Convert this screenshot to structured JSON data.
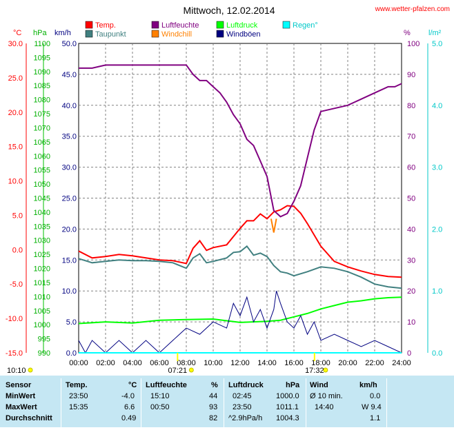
{
  "header": {
    "title": "Mittwoch, 12.02.2014",
    "site": "www.wetter-pfalzen.com"
  },
  "legend": [
    {
      "label": "Temp.",
      "color": "#ff0000"
    },
    {
      "label": "Luftfeuchte",
      "color": "#800080"
    },
    {
      "label": "Luftdruck",
      "color": "#00ff00"
    },
    {
      "label": "Regen°",
      "color": "#00ffff"
    },
    {
      "label": "Taupunkt",
      "color": "#408080"
    },
    {
      "label": "Windchill",
      "color": "#ff8000"
    },
    {
      "label": "Windböen",
      "color": "#000080"
    }
  ],
  "axes": {
    "unit_temp": "°C",
    "unit_hpa": "hPa",
    "unit_kmh": "km/h",
    "unit_pct": "%",
    "unit_rain": "l/m²",
    "temp_ticks": [
      "30.0",
      "25.0",
      "20.0",
      "15.0",
      "10.0",
      "5.0",
      "0.0",
      "-5.0",
      "-10.0",
      "-15.0"
    ],
    "hpa_ticks": [
      "1100",
      "1095",
      "1090",
      "1085",
      "1080",
      "1075",
      "1070",
      "1065",
      "1060",
      "1055",
      "1050",
      "1045",
      "1040",
      "1035",
      "1030",
      "1025",
      "1020",
      "1015",
      "1010",
      "1005",
      "1000",
      "995",
      "990"
    ],
    "kmh_ticks": [
      "50.0",
      "45.0",
      "40.0",
      "35.0",
      "30.0",
      "25.0",
      "20.0",
      "15.0",
      "10.0",
      "5.0",
      "0.0"
    ],
    "pct_ticks": [
      "100",
      "90",
      "80",
      "70",
      "60",
      "50",
      "40",
      "30",
      "20",
      "10",
      "0"
    ],
    "rain_ticks": [
      "5.0",
      "4.0",
      "3.0",
      "2.0",
      "1.0",
      "0.0"
    ],
    "x_ticks": [
      "00:00",
      "02:00",
      "04:00",
      "06:00",
      "08:00",
      "10:00",
      "12:00",
      "14:00",
      "16:00",
      "18:00",
      "20:00",
      "22:00",
      "24:00"
    ],
    "sunrise": "07:21",
    "sunset": "17:32",
    "sun_hours": "10:10"
  },
  "chart_data": {
    "type": "line",
    "x_unit": "hour",
    "series": [
      {
        "name": "Temp.",
        "axis": "temp",
        "color": "#ff0000",
        "x": [
          0,
          1,
          2,
          3,
          4,
          5,
          6,
          7,
          8,
          8.5,
          9,
          9.5,
          10,
          11,
          12,
          12.5,
          13,
          13.5,
          14,
          14.5,
          15,
          15.5,
          16,
          16.5,
          17,
          18,
          19,
          20,
          21,
          22,
          23,
          24
        ],
        "y": [
          -0.2,
          -1.2,
          -1.0,
          -0.7,
          -0.9,
          -1.2,
          -1.5,
          -1.6,
          -2.0,
          0.2,
          1.3,
          -0.1,
          0.3,
          0.7,
          3.1,
          4.2,
          4.2,
          5.2,
          4.5,
          5.5,
          5.8,
          6.4,
          6.3,
          5.3,
          3.8,
          0.5,
          -1.7,
          -2.5,
          -3.1,
          -3.6,
          -3.9,
          -4.0
        ]
      },
      {
        "name": "Taupunkt",
        "axis": "temp",
        "color": "#408080",
        "x": [
          0,
          1,
          2,
          3,
          4,
          5,
          6,
          7,
          8,
          8.5,
          9,
          9.5,
          10,
          11,
          11.5,
          12,
          12.5,
          13,
          13.5,
          14,
          14.5,
          15,
          15.5,
          16,
          17,
          18,
          19,
          20,
          21,
          22,
          23,
          24
        ],
        "y": [
          -1.3,
          -1.9,
          -1.7,
          -1.5,
          -1.6,
          -1.6,
          -1.7,
          -1.9,
          -2.7,
          -1.2,
          -0.6,
          -1.9,
          -1.7,
          -1.2,
          -0.4,
          -0.3,
          0.5,
          -0.8,
          -0.5,
          -1.0,
          -2.3,
          -3.2,
          -3.4,
          -3.8,
          -3.2,
          -2.5,
          -2.7,
          -3.2,
          -4.0,
          -5.0,
          -5.4,
          -5.6
        ]
      },
      {
        "name": "Luftfeuchte",
        "axis": "pct",
        "color": "#800080",
        "x": [
          0,
          1,
          2,
          3,
          4,
          5,
          6,
          7,
          8,
          8.5,
          9,
          9.5,
          10,
          10.5,
          11,
          11.5,
          12,
          12.5,
          13,
          13.5,
          14,
          14.5,
          15,
          15.5,
          16,
          16.5,
          17,
          17.5,
          18,
          19,
          20,
          21,
          22,
          23,
          23.5,
          24
        ],
        "y": [
          92,
          92,
          93,
          93,
          93,
          93,
          93,
          93,
          93,
          90,
          88,
          88,
          86,
          84,
          81,
          77,
          74,
          69,
          67,
          62,
          57,
          46,
          44,
          45,
          49,
          54,
          63,
          72,
          78,
          79,
          80,
          82,
          84,
          86,
          86,
          87
        ]
      },
      {
        "name": "Luftdruck",
        "axis": "hpa",
        "color": "#00ff00",
        "x": [
          0,
          2,
          4,
          6,
          8,
          10,
          12,
          14,
          15,
          16,
          17,
          18,
          19,
          20,
          21,
          22,
          23,
          24
        ],
        "y": [
          1000.4,
          1001.0,
          1000.6,
          1001.6,
          1001.8,
          1002.0,
          1000.8,
          1001.2,
          1001.6,
          1002.8,
          1004.0,
          1005.6,
          1006.8,
          1008.0,
          1008.5,
          1009.2,
          1009.6,
          1009.8
        ]
      },
      {
        "name": "Windchill",
        "axis": "temp",
        "color": "#ff8000",
        "x": [
          14.3,
          14.5,
          14.7
        ],
        "y": [
          4.5,
          2.5,
          4.5
        ]
      },
      {
        "name": "Windböen",
        "axis": "kmh",
        "color": "#000080",
        "x": [
          0,
          0.5,
          1,
          2,
          3,
          4,
          5,
          6,
          7,
          8,
          9,
          10,
          11,
          11.5,
          12,
          12.5,
          13,
          13.5,
          14,
          14.5,
          14.7,
          15,
          15.5,
          16,
          16.5,
          17,
          17.5,
          18,
          19,
          20,
          21,
          22,
          23,
          24
        ],
        "y": [
          2,
          0,
          2,
          0,
          2,
          0,
          2,
          0,
          2,
          4,
          3,
          5,
          4,
          8,
          6,
          9,
          5,
          7,
          4,
          7,
          10,
          8,
          5,
          4,
          6,
          3,
          5,
          2,
          3,
          2,
          1,
          2,
          1,
          0
        ]
      },
      {
        "name": "Regen°",
        "axis": "rain",
        "color": "#00ffff",
        "x": [
          0,
          24
        ],
        "y": [
          0,
          0
        ]
      }
    ]
  },
  "table": {
    "headers": {
      "sensor": "Sensor",
      "temp": "Temp.",
      "temp_unit": "°C",
      "hum": "Luftfeuchte",
      "hum_unit": "%",
      "press": "Luftdruck",
      "press_unit": "hPa",
      "wind": "Wind",
      "wind_unit": "km/h"
    },
    "rows": [
      {
        "label": "MinWert",
        "t_time": "23:50",
        "t_val": "-4.0",
        "h_time": "15:10",
        "h_val": "44",
        "p_time": "02:45",
        "p_val": "1000.0",
        "w_time": "Ø 10 min.",
        "w_val": "0.0"
      },
      {
        "label": "MaxWert",
        "t_time": "15:35",
        "t_val": "6.6",
        "h_time": "00:50",
        "h_val": "93",
        "p_time": "23:50",
        "p_val": "1011.1",
        "w_time": "14:40",
        "w_val": "W 9.4"
      },
      {
        "label": "Durchschnitt",
        "t_time": "",
        "t_val": "0.49",
        "h_time": "",
        "h_val": "82",
        "p_time": "^2.9hPa/h",
        "p_val": "1004.3",
        "w_time": "",
        "w_val": "1.1"
      }
    ]
  }
}
